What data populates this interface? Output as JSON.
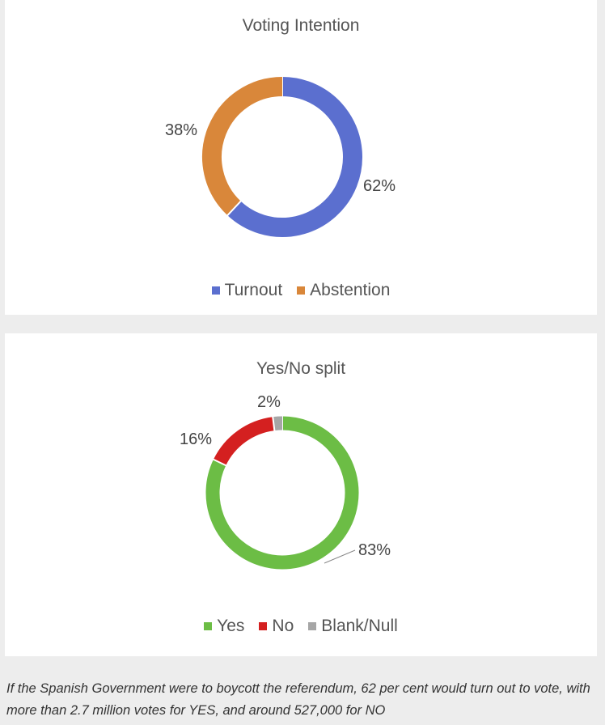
{
  "chart_data": [
    {
      "type": "pie",
      "subtype": "donut",
      "title": "Voting Intention",
      "categories": [
        "Turnout",
        "Abstention"
      ],
      "values": [
        62,
        38
      ],
      "data_labels": [
        "62%",
        "38%"
      ],
      "colors": [
        "#5b6fcf",
        "#d9873a"
      ],
      "legend": "bottom"
    },
    {
      "type": "pie",
      "subtype": "donut",
      "title": "Yes/No split",
      "categories": [
        "Yes",
        "No",
        "Blank/Null"
      ],
      "values": [
        83,
        16,
        2
      ],
      "data_labels": [
        "83%",
        "16%",
        "2%"
      ],
      "colors": [
        "#6cbd45",
        "#d42020",
        "#a6a6a6"
      ],
      "legend": "bottom"
    }
  ],
  "caption": "If the Spanish Government were to boycott the referendum, 62 per cent would turn out to vote, with more than 2.7 million votes for YES, and around 527,000 for NO"
}
